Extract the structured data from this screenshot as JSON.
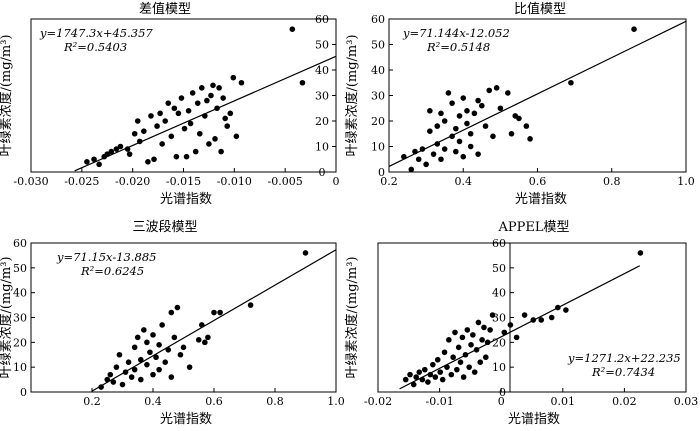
{
  "chart_data": [
    {
      "type": "scatter",
      "title": "差值模型",
      "xlabel": "光谱指数",
      "ylabel": "叶绿素浓度/(mg/m³)",
      "xlim": [
        -0.03,
        0
      ],
      "ylim": [
        0,
        60
      ],
      "xticks": [
        "-0.030",
        "-0.025",
        "-0.020",
        "-0.015",
        "-0.010",
        "-0.005",
        "0"
      ],
      "yticks": [
        "0",
        "10",
        "20",
        "30",
        "40",
        "50",
        "60"
      ],
      "equation": "y=1747.3x+45.357",
      "r2": "R²=0.5403",
      "fit": {
        "slope": 1747.3,
        "intercept": 45.357,
        "xrange": [
          -0.0257,
          0
        ]
      },
      "x": [
        -0.0245,
        -0.0238,
        -0.0233,
        -0.0228,
        -0.0225,
        -0.0221,
        -0.0216,
        -0.0212,
        -0.0205,
        -0.0203,
        -0.0198,
        -0.0195,
        -0.0193,
        -0.0189,
        -0.0185,
        -0.0182,
        -0.0179,
        -0.0176,
        -0.0173,
        -0.0171,
        -0.0168,
        -0.0165,
        -0.0162,
        -0.0159,
        -0.0157,
        -0.0155,
        -0.0152,
        -0.0149,
        -0.0147,
        -0.0145,
        -0.0143,
        -0.0141,
        -0.0138,
        -0.0136,
        -0.0134,
        -0.0132,
        -0.0129,
        -0.0127,
        -0.0125,
        -0.0123,
        -0.0121,
        -0.0119,
        -0.0117,
        -0.0115,
        -0.0113,
        -0.0111,
        -0.0109,
        -0.0107,
        -0.0104,
        -0.0101,
        -0.0098,
        -0.0093,
        -0.0043,
        -0.0033
      ],
      "y": [
        4,
        5,
        3,
        6,
        7,
        8,
        9,
        10,
        9,
        7,
        15,
        20,
        12,
        16,
        4,
        22,
        5,
        18,
        23,
        11,
        20,
        27,
        14,
        25,
        6,
        23,
        29,
        17,
        6,
        24,
        19,
        31,
        8,
        27,
        15,
        33,
        22,
        28,
        11,
        30,
        34,
        13,
        25,
        33,
        8,
        29,
        21,
        18,
        23,
        37,
        14,
        35,
        56,
        35
      ]
    },
    {
      "type": "scatter",
      "title": "比值模型",
      "xlabel": "光谱指数",
      "ylabel": "叶绿素浓度/(mg/m³)",
      "xlim": [
        0.2,
        1.0
      ],
      "ylim": [
        0,
        60
      ],
      "xticks": [
        "0.2",
        "0.4",
        "0.6",
        "0.8",
        "1.0"
      ],
      "yticks": [
        "0",
        "10",
        "20",
        "30",
        "40",
        "50",
        "60"
      ],
      "equation": "y=71.144x-12.052",
      "r2": "R²=0.5148",
      "fit": {
        "slope": 71.144,
        "intercept": -12.052,
        "xrange": [
          0.2,
          1.0
        ]
      },
      "x": [
        0.24,
        0.26,
        0.27,
        0.28,
        0.29,
        0.3,
        0.31,
        0.31,
        0.32,
        0.33,
        0.33,
        0.34,
        0.34,
        0.35,
        0.35,
        0.36,
        0.37,
        0.37,
        0.38,
        0.38,
        0.39,
        0.39,
        0.4,
        0.4,
        0.41,
        0.41,
        0.42,
        0.42,
        0.43,
        0.44,
        0.44,
        0.45,
        0.46,
        0.47,
        0.48,
        0.49,
        0.5,
        0.52,
        0.53,
        0.54,
        0.55,
        0.57,
        0.58,
        0.69,
        0.86
      ],
      "y": [
        6,
        1,
        8,
        5,
        9,
        3,
        24,
        16,
        7,
        18,
        11,
        23,
        5,
        20,
        9,
        31,
        14,
        27,
        8,
        17,
        22,
        12,
        29,
        6,
        19,
        24,
        10,
        15,
        23,
        28,
        7,
        26,
        18,
        32,
        14,
        33,
        25,
        31,
        15,
        22,
        21,
        18,
        13,
        35,
        56
      ]
    },
    {
      "type": "scatter",
      "title": "三波段模型",
      "xlabel": "光谱指数",
      "ylabel": "叶绿素浓度/(mg/m³)",
      "xlim": [
        0,
        1.0
      ],
      "ylim": [
        0,
        60
      ],
      "xticks": [
        "0.2",
        "0.4",
        "0.6",
        "0.8",
        "1.0"
      ],
      "yticks": [
        "0",
        "10",
        "20",
        "30",
        "40",
        "50",
        "60"
      ],
      "equation": "y=71.15x-13.885",
      "r2": "R²=0.6245",
      "fit": {
        "slope": 71.15,
        "intercept": -13.885,
        "xrange": [
          0.2,
          1.0
        ]
      },
      "x": [
        0.23,
        0.25,
        0.26,
        0.27,
        0.28,
        0.29,
        0.3,
        0.31,
        0.32,
        0.33,
        0.34,
        0.34,
        0.35,
        0.36,
        0.36,
        0.37,
        0.38,
        0.38,
        0.39,
        0.4,
        0.4,
        0.41,
        0.42,
        0.42,
        0.43,
        0.44,
        0.45,
        0.46,
        0.46,
        0.47,
        0.48,
        0.49,
        0.5,
        0.52,
        0.55,
        0.56,
        0.57,
        0.58,
        0.6,
        0.62,
        0.72,
        0.9
      ],
      "y": [
        2,
        5,
        7,
        4,
        10,
        15,
        3,
        8,
        12,
        6,
        18,
        9,
        22,
        13,
        5,
        25,
        11,
        20,
        16,
        7,
        23,
        14,
        19,
        9,
        27,
        12,
        17,
        32,
        6,
        22,
        34,
        15,
        18,
        10,
        21,
        27,
        20,
        22,
        32,
        32,
        35,
        56
      ]
    },
    {
      "type": "scatter",
      "title": "APPEL模型",
      "xlabel": "光谱指数",
      "ylabel": "叶绿素浓度/(mg/m³)",
      "xlim": [
        -0.02,
        0.03
      ],
      "ylim": [
        0,
        60
      ],
      "xticks": [
        "-0.02",
        "-0.01",
        "0",
        "0.01",
        "0.02",
        "0.03"
      ],
      "yticks": [
        "0",
        "10",
        "20",
        "30",
        "40",
        "50",
        "60"
      ],
      "equation": "y=1271.2x+22.235",
      "r2": "R²=0.7434",
      "fit": {
        "slope": 1271.2,
        "intercept": 22.235,
        "xrange": [
          -0.0165,
          0.0225
        ]
      },
      "x": [
        -0.0155,
        -0.0148,
        -0.0142,
        -0.0138,
        -0.0133,
        -0.0128,
        -0.0124,
        -0.0119,
        -0.0115,
        -0.0111,
        -0.0107,
        -0.0103,
        -0.0099,
        -0.0095,
        -0.0092,
        -0.0088,
        -0.0085,
        -0.0081,
        -0.0078,
        -0.0075,
        -0.0072,
        -0.0069,
        -0.0066,
        -0.0063,
        -0.0061,
        -0.0058,
        -0.0055,
        -0.0052,
        -0.0049,
        -0.0046,
        -0.0043,
        -0.004,
        -0.0037,
        -0.0034,
        -0.0031,
        -0.0028,
        -0.0025,
        -0.0022,
        -0.0018,
        -0.0014,
        0.0005,
        0.0015,
        0.0025,
        0.0038,
        0.0052,
        0.0065,
        0.0082,
        0.0092,
        0.0105,
        0.0226
      ],
      "y": [
        5,
        7,
        3,
        6,
        8,
        5,
        9,
        4,
        7,
        11,
        6,
        13,
        8,
        5,
        16,
        10,
        21,
        7,
        14,
        24,
        9,
        18,
        12,
        22,
        6,
        15,
        25,
        10,
        19,
        23,
        8,
        17,
        28,
        12,
        21,
        26,
        14,
        20,
        25,
        31,
        24,
        27,
        22,
        31,
        29,
        29,
        30,
        34,
        33,
        56
      ]
    }
  ]
}
